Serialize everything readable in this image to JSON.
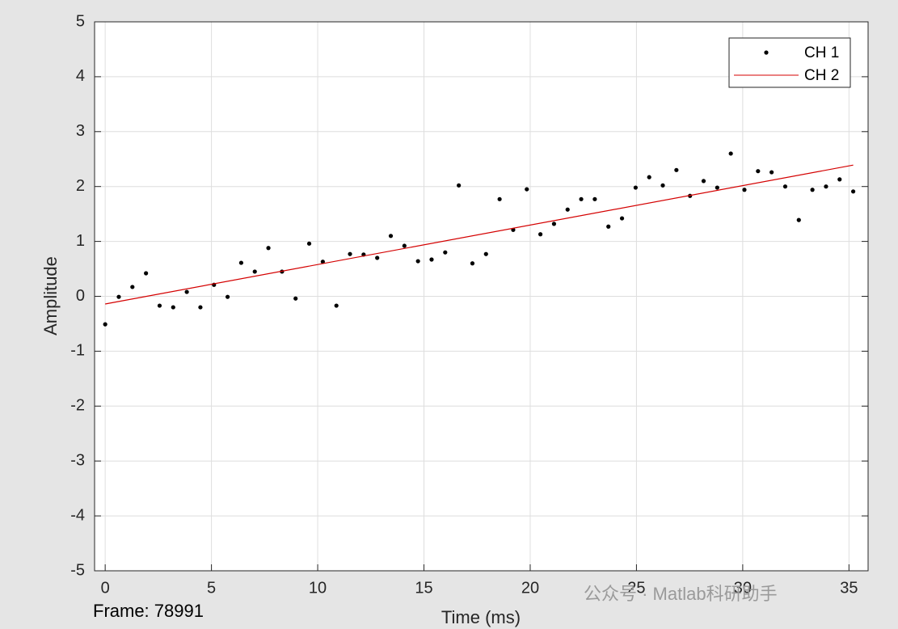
{
  "chart_data": {
    "type": "line",
    "xlabel": "Time (ms)",
    "ylabel": "Amplitude",
    "annotations": [
      "Frame: 78991",
      "公众号 · Matlab科研助手"
    ],
    "xlim": [
      -0.5,
      35.9
    ],
    "xticks": [
      0,
      5,
      10,
      15,
      20,
      25,
      30,
      35
    ],
    "ylim": [
      -5,
      5
    ],
    "yticks": [
      -5,
      -4,
      -3,
      -2,
      -1,
      0,
      1,
      2,
      3,
      4,
      5
    ],
    "grid": true,
    "legend": "upper right",
    "series": [
      {
        "name": "CH 1",
        "color": "#000000",
        "marker": "dot",
        "linestyle": "none",
        "x": [
          0,
          0.64,
          1.28,
          1.92,
          2.56,
          3.2,
          3.84,
          4.48,
          5.12,
          5.76,
          6.4,
          7.04,
          7.68,
          8.32,
          8.96,
          9.6,
          10.24,
          10.88,
          11.52,
          12.16,
          12.8,
          13.44,
          14.08,
          14.72,
          15.36,
          16,
          16.64,
          17.28,
          17.92,
          18.56,
          19.2,
          19.84,
          20.48,
          21.12,
          21.76,
          22.4,
          23.04,
          23.68,
          24.32,
          24.96,
          25.6,
          26.24,
          26.88,
          27.52,
          28.16,
          28.8,
          29.44,
          30.08,
          30.72,
          31.36,
          32,
          32.64,
          33.28,
          33.92,
          34.56,
          35.2
        ],
        "values": [
          -0.51,
          -0.01,
          0.17,
          0.42,
          -0.17,
          -0.2,
          0.08,
          -0.2,
          0.21,
          -0.01,
          0.61,
          0.45,
          0.88,
          0.45,
          -0.04,
          0.96,
          0.63,
          -0.17,
          0.77,
          0.76,
          0.7,
          1.1,
          0.92,
          0.64,
          0.67,
          0.8,
          2.02,
          0.6,
          0.77,
          1.77,
          1.21,
          1.95,
          1.13,
          1.32,
          1.58,
          1.77,
          1.77,
          1.27,
          1.42,
          1.98,
          2.17,
          2.02,
          2.3,
          1.83,
          2.1,
          1.98,
          2.6,
          1.94,
          2.28,
          2.26,
          2.0,
          1.39,
          1.94,
          2.0,
          2.13,
          1.91
        ]
      },
      {
        "name": "CH 2",
        "color": "#d40000",
        "marker": "none",
        "linestyle": "solid",
        "x": [
          0,
          35.2
        ],
        "values": [
          -0.14,
          2.39
        ]
      }
    ]
  }
}
